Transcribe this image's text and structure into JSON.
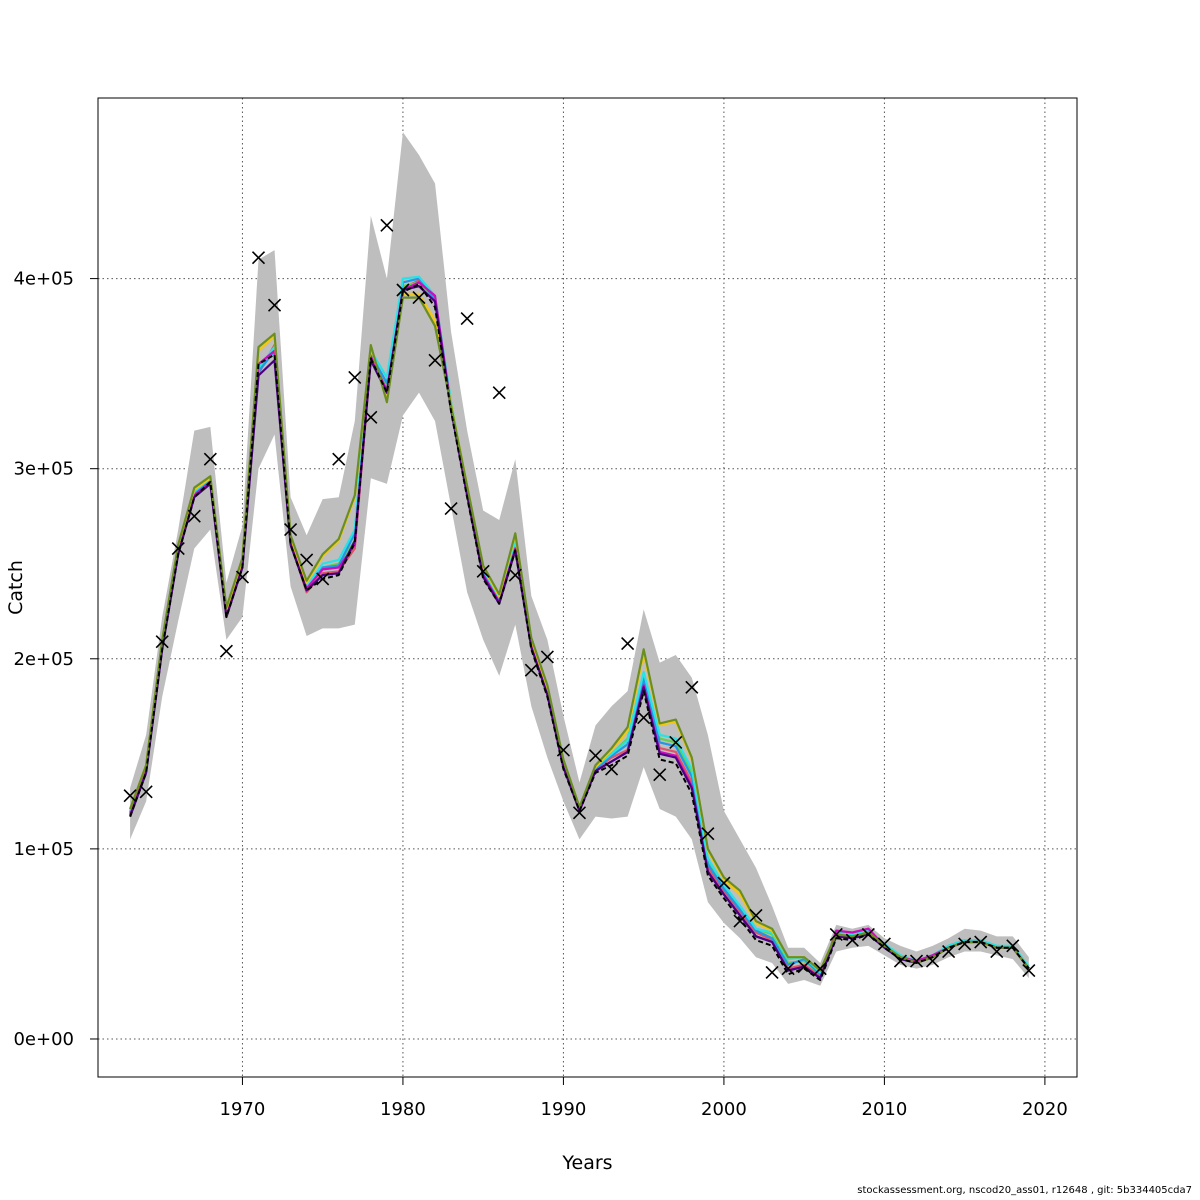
{
  "chart_data": {
    "type": "line",
    "xlabel": "Years",
    "ylabel": "Catch",
    "xlim": [
      1961,
      2022
    ],
    "ylim": [
      -20000,
      495000
    ],
    "x_ticks": [
      1970,
      1980,
      1990,
      2000,
      2010,
      2020
    ],
    "y_ticks": [
      0,
      100000,
      200000,
      300000,
      400000
    ],
    "y_tick_labels": [
      "0e+00",
      "1e+05",
      "2e+05",
      "3e+05",
      "4e+05"
    ],
    "grid": true,
    "band_color": "#bebebe",
    "years": [
      1963,
      1964,
      1965,
      1966,
      1967,
      1968,
      1969,
      1970,
      1971,
      1972,
      1973,
      1974,
      1975,
      1976,
      1977,
      1978,
      1979,
      1980,
      1981,
      1982,
      1983,
      1984,
      1985,
      1986,
      1987,
      1988,
      1989,
      1990,
      1991,
      1992,
      1993,
      1994,
      1995,
      1996,
      1997,
      1998,
      1999,
      2000,
      2001,
      2002,
      2003,
      2004,
      2005,
      2006,
      2007,
      2008,
      2009,
      2010,
      2011,
      2012,
      2013,
      2014,
      2015,
      2016,
      2017,
      2018,
      2019
    ],
    "band_upper": [
      132000,
      160000,
      222000,
      268000,
      320000,
      322000,
      240000,
      270000,
      410000,
      415000,
      285000,
      265000,
      284000,
      285000,
      325000,
      433000,
      400000,
      477000,
      465000,
      450000,
      372000,
      320000,
      278000,
      273000,
      305000,
      233000,
      210000,
      170000,
      135000,
      165000,
      175000,
      183000,
      226000,
      198000,
      202000,
      190000,
      160000,
      120000,
      105000,
      90000,
      70000,
      48000,
      48000,
      40000,
      60000,
      58000,
      60000,
      53000,
      49000,
      46000,
      49000,
      53000,
      58000,
      57000,
      54000,
      54000,
      43000
    ],
    "band_lower": [
      105000,
      125000,
      180000,
      220000,
      258000,
      268000,
      210000,
      222000,
      300000,
      318000,
      238000,
      212000,
      216000,
      216000,
      218000,
      295000,
      292000,
      328000,
      340000,
      325000,
      280000,
      235000,
      210000,
      191000,
      218000,
      175000,
      148000,
      125000,
      105000,
      117000,
      116000,
      117000,
      143000,
      121000,
      117000,
      105000,
      72000,
      61000,
      53000,
      43000,
      40000,
      29000,
      31000,
      28000,
      46000,
      48000,
      49000,
      44000,
      39000,
      37000,
      39000,
      43000,
      46000,
      46000,
      44000,
      42000,
      32000
    ],
    "series": [
      {
        "color": "#000000",
        "dashed": true,
        "values": [
          117000,
          140000,
          205000,
          255000,
          285000,
          293000,
          222000,
          248000,
          355000,
          360000,
          260000,
          236000,
          242000,
          244000,
          261000,
          358000,
          340000,
          393000,
          397000,
          385000,
          330000,
          285000,
          242000,
          229000,
          257000,
          205000,
          180000,
          142000,
          120000,
          140000,
          144000,
          149000,
          183000,
          147000,
          145000,
          129000,
          86000,
          74000,
          63000,
          52000,
          49000,
          34000,
          37000,
          31000,
          53000,
          52000,
          55000,
          48000,
          42000,
          40000,
          43000,
          48000,
          51000,
          51000,
          48000,
          48000,
          37000
        ]
      },
      {
        "color": "#df536b",
        "values": [
          118000,
          141000,
          206000,
          256000,
          286000,
          294000,
          223000,
          249000,
          350000,
          365000,
          261000,
          235000,
          245000,
          246000,
          258000,
          358000,
          342000,
          395000,
          399000,
          390000,
          332000,
          287000,
          245000,
          230000,
          259000,
          207000,
          182000,
          143000,
          121000,
          142000,
          148000,
          152000,
          188000,
          153000,
          151000,
          135000,
          90000,
          78000,
          67000,
          56000,
          52000,
          37000,
          39000,
          33000,
          56000,
          55000,
          58000,
          49000,
          43000,
          41000,
          44000,
          48000,
          52000,
          51000,
          48000,
          48000,
          37000
        ]
      },
      {
        "color": "#61d04f",
        "values": [
          119000,
          142000,
          207000,
          257000,
          287000,
          294000,
          224000,
          250000,
          352000,
          363000,
          262000,
          236000,
          248000,
          250000,
          262000,
          360000,
          343000,
          396000,
          398000,
          388000,
          333000,
          288000,
          246000,
          231000,
          260000,
          208000,
          183000,
          144000,
          121000,
          143000,
          150000,
          158000,
          192000,
          158000,
          156000,
          140000,
          94000,
          80000,
          70000,
          58000,
          55000,
          40000,
          41000,
          34000,
          55000,
          54000,
          56000,
          49000,
          43000,
          40000,
          43000,
          48000,
          51000,
          51000,
          48000,
          48000,
          37000
        ]
      },
      {
        "color": "#2297e6",
        "values": [
          119000,
          142000,
          207000,
          257000,
          287000,
          294000,
          224000,
          250000,
          351000,
          362000,
          262000,
          237000,
          248000,
          249000,
          266000,
          360000,
          345000,
          398000,
          400000,
          389000,
          333000,
          288000,
          246000,
          231000,
          260000,
          208000,
          183000,
          144000,
          121000,
          142000,
          149000,
          155000,
          190000,
          156000,
          154000,
          138000,
          92000,
          79000,
          68000,
          57000,
          53000,
          39000,
          42000,
          34000,
          55000,
          54000,
          56000,
          49000,
          43000,
          41000,
          44000,
          49000,
          52000,
          52000,
          48000,
          48000,
          37000
        ]
      },
      {
        "color": "#28e2e5",
        "values": [
          120000,
          143000,
          208000,
          258000,
          288000,
          295000,
          225000,
          251000,
          353000,
          364000,
          263000,
          238000,
          250000,
          252000,
          268000,
          362000,
          348000,
          400000,
          401000,
          391000,
          335000,
          290000,
          247000,
          232000,
          262000,
          209000,
          184000,
          145000,
          122000,
          143000,
          150000,
          157000,
          193000,
          160000,
          158000,
          142000,
          95000,
          81000,
          70000,
          58000,
          56000,
          42000,
          43000,
          35000,
          56000,
          55000,
          57000,
          50000,
          44000,
          41000,
          44000,
          49000,
          52000,
          52000,
          49000,
          49000,
          38000
        ]
      },
      {
        "color": "#cd0bbc",
        "values": [
          118000,
          141000,
          206000,
          256000,
          286000,
          293000,
          223000,
          249000,
          355000,
          362000,
          261000,
          237000,
          247000,
          248000,
          260000,
          359000,
          341000,
          394000,
          398000,
          391000,
          332000,
          287000,
          244000,
          230000,
          258000,
          207000,
          181000,
          143000,
          120000,
          141000,
          146000,
          151000,
          186000,
          151000,
          149000,
          133000,
          88000,
          76000,
          65000,
          54000,
          51000,
          36000,
          38000,
          32000,
          57000,
          56000,
          58000,
          49000,
          43000,
          41000,
          44000,
          48000,
          51000,
          51000,
          48000,
          48000,
          37000
        ]
      },
      {
        "color": "#f5c710",
        "values": [
          121000,
          144000,
          209000,
          259000,
          289000,
          295000,
          226000,
          252000,
          362000,
          370000,
          264000,
          240000,
          254000,
          262000,
          285000,
          364000,
          336000,
          392000,
          392000,
          378000,
          334000,
          291000,
          248000,
          233000,
          265000,
          210000,
          185000,
          146000,
          122000,
          143000,
          152000,
          162000,
          203000,
          165000,
          167000,
          147000,
          99000,
          84000,
          76000,
          61000,
          57000,
          43000,
          43000,
          36000,
          55000,
          54000,
          56000,
          49000,
          43000,
          40000,
          43000,
          48000,
          51000,
          51000,
          48000,
          48000,
          37000
        ]
      },
      {
        "color": "#4b0082",
        "values": [
          117000,
          140000,
          205000,
          255000,
          285000,
          292000,
          222000,
          248000,
          349000,
          357000,
          260000,
          236000,
          244000,
          245000,
          262000,
          357000,
          340000,
          394000,
          396000,
          388000,
          331000,
          286000,
          243000,
          229000,
          257000,
          206000,
          181000,
          143000,
          120000,
          141000,
          146000,
          151000,
          185000,
          150000,
          148000,
          132000,
          88000,
          76000,
          65000,
          54000,
          51000,
          36000,
          38000,
          32000,
          54000,
          53000,
          55000,
          48000,
          42000,
          40000,
          43000,
          48000,
          51000,
          51000,
          48000,
          48000,
          37000
        ]
      },
      {
        "color": "#6b8e23",
        "values": [
          121000,
          144000,
          210000,
          260000,
          290000,
          296000,
          227000,
          253000,
          364000,
          371000,
          265000,
          241000,
          255000,
          263000,
          286000,
          365000,
          335000,
          390000,
          390000,
          375000,
          333000,
          291000,
          249000,
          234000,
          266000,
          211000,
          186000,
          147000,
          122000,
          144000,
          153000,
          164000,
          205000,
          166000,
          168000,
          148000,
          100000,
          85000,
          78000,
          62000,
          58000,
          43000,
          43000,
          36000,
          55000,
          54000,
          56000,
          49000,
          43000,
          40000,
          43000,
          48000,
          51000,
          51000,
          48000,
          48000,
          37000
        ]
      }
    ],
    "observations": {
      "x": [
        1963,
        1964,
        1965,
        1966,
        1967,
        1968,
        1969,
        1970,
        1971,
        1972,
        1973,
        1974,
        1975,
        1976,
        1977,
        1978,
        1979,
        1980,
        1981,
        1982,
        1983,
        1984,
        1985,
        1986,
        1987,
        1988,
        1989,
        1990,
        1991,
        1992,
        1993,
        1994,
        1995,
        1996,
        1997,
        1998,
        1999,
        2000,
        2001,
        2002,
        2003,
        2004,
        2005,
        2006,
        2007,
        2008,
        2009,
        2010,
        2011,
        2012,
        2013,
        2014,
        2015,
        2016,
        2017,
        2018,
        2019
      ],
      "y": [
        128000,
        130000,
        209000,
        258000,
        275000,
        305000,
        204000,
        243000,
        411000,
        386000,
        268000,
        252000,
        242000,
        305000,
        348000,
        327000,
        428000,
        394000,
        390000,
        357000,
        279000,
        379000,
        246000,
        340000,
        244000,
        194000,
        201000,
        152000,
        119000,
        149000,
        142000,
        208000,
        169000,
        139000,
        156000,
        185000,
        108000,
        82000,
        62000,
        65000,
        35000,
        37000,
        38000,
        37000,
        55000,
        52000,
        55000,
        50000,
        41000,
        41000,
        41000,
        46000,
        50000,
        51000,
        46000,
        49000,
        36000
      ]
    }
  },
  "footer": {
    "text": "stockassessment.org, nscod20_ass01, r12648 , git: 5b334405cda7"
  }
}
